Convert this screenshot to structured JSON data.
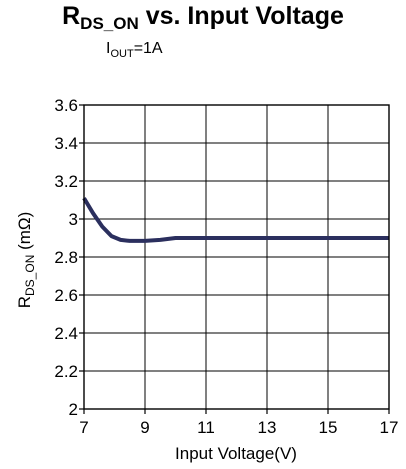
{
  "chart_data": {
    "type": "line",
    "title": {
      "main": "R",
      "sub": "DS_ON",
      "rest": " vs. Input Voltage"
    },
    "subtitle": {
      "main": "I",
      "sub": "OUT",
      "rest": "=1A"
    },
    "xlabel": "Input Voltage(V)",
    "ylabel": {
      "main": "R",
      "sub": "DS_ON",
      "rest": " (mΩ)"
    },
    "xlim": [
      7,
      17
    ],
    "ylim": [
      2,
      3.6
    ],
    "x_ticks": [
      7,
      9,
      11,
      13,
      15,
      17
    ],
    "y_ticks": [
      2,
      2.2,
      2.4,
      2.6,
      2.8,
      3,
      3.2,
      3.4,
      3.6
    ],
    "x_tick_labels": [
      "7",
      "9",
      "11",
      "13",
      "15",
      "17"
    ],
    "y_tick_labels": [
      "2",
      "2.2",
      "2.4",
      "2.6",
      "2.8",
      "3",
      "3.2",
      "3.4",
      "3.6"
    ],
    "grid": true,
    "line_color": "#2b2f5e",
    "series": [
      {
        "x": [
          7.0,
          7.3,
          7.6,
          7.9,
          8.2,
          8.5,
          9.0,
          9.5,
          10.0,
          11,
          12,
          13,
          14,
          15,
          16,
          17
        ],
        "y": [
          3.11,
          3.03,
          2.96,
          2.91,
          2.89,
          2.885,
          2.885,
          2.89,
          2.9,
          2.9,
          2.9,
          2.9,
          2.9,
          2.9,
          2.9,
          2.9
        ]
      }
    ]
  }
}
